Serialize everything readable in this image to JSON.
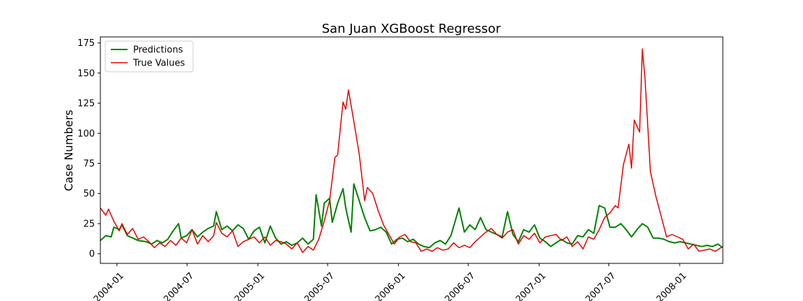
{
  "chart_data": {
    "type": "line",
    "title": "San Juan XGBoost Regressor",
    "xlabel": "",
    "ylabel": "Case Numbers",
    "x_axis_kind": "date",
    "xlim": [
      "2003-11-19",
      "2008-04-22"
    ],
    "ylim": [
      -8,
      180
    ],
    "x_ticks": [
      {
        "label": "2004-01",
        "date": "2004-01-01"
      },
      {
        "label": "2004-07",
        "date": "2004-07-01"
      },
      {
        "label": "2005-01",
        "date": "2005-01-01"
      },
      {
        "label": "2005-07",
        "date": "2005-07-01"
      },
      {
        "label": "2006-01",
        "date": "2006-01-01"
      },
      {
        "label": "2006-07",
        "date": "2006-07-01"
      },
      {
        "label": "2007-01",
        "date": "2007-01-01"
      },
      {
        "label": "2007-07",
        "date": "2007-07-01"
      },
      {
        "label": "2008-01",
        "date": "2008-01-01"
      }
    ],
    "y_ticks": [
      0,
      25,
      50,
      75,
      100,
      125,
      150,
      175
    ],
    "grid": false,
    "legend_position": "top-left",
    "series": [
      {
        "name": "Predictions",
        "color": "#008000",
        "points": [
          [
            "2003-11-19",
            11
          ],
          [
            "2003-12-03",
            15
          ],
          [
            "2003-12-17",
            14
          ],
          [
            "2003-12-24",
            22
          ],
          [
            "2004-01-07",
            20
          ],
          [
            "2004-01-14",
            24
          ],
          [
            "2004-01-28",
            15
          ],
          [
            "2004-02-11",
            13
          ],
          [
            "2004-02-25",
            11
          ],
          [
            "2004-03-17",
            10
          ],
          [
            "2004-03-31",
            8
          ],
          [
            "2004-04-14",
            11
          ],
          [
            "2004-04-28",
            9
          ],
          [
            "2004-05-12",
            12
          ],
          [
            "2004-05-26",
            19
          ],
          [
            "2004-06-09",
            25
          ],
          [
            "2004-06-16",
            13
          ],
          [
            "2004-06-30",
            15
          ],
          [
            "2004-07-14",
            20
          ],
          [
            "2004-07-28",
            14
          ],
          [
            "2004-08-11",
            18
          ],
          [
            "2004-08-25",
            21
          ],
          [
            "2004-09-08",
            23
          ],
          [
            "2004-09-15",
            35
          ],
          [
            "2004-09-29",
            20
          ],
          [
            "2004-10-13",
            23
          ],
          [
            "2004-10-27",
            19
          ],
          [
            "2004-11-10",
            24
          ],
          [
            "2004-11-24",
            21
          ],
          [
            "2004-12-08",
            12
          ],
          [
            "2004-12-22",
            19
          ],
          [
            "2005-01-05",
            22
          ],
          [
            "2005-01-19",
            9
          ],
          [
            "2005-02-02",
            23
          ],
          [
            "2005-02-16",
            13
          ],
          [
            "2005-03-02",
            8
          ],
          [
            "2005-03-16",
            10
          ],
          [
            "2005-03-30",
            7
          ],
          [
            "2005-04-13",
            9
          ],
          [
            "2005-04-27",
            13
          ],
          [
            "2005-05-11",
            8
          ],
          [
            "2005-05-25",
            12
          ],
          [
            "2005-06-01",
            49
          ],
          [
            "2005-06-15",
            23
          ],
          [
            "2005-06-22",
            42
          ],
          [
            "2005-07-06",
            46
          ],
          [
            "2005-07-13",
            26
          ],
          [
            "2005-07-27",
            42
          ],
          [
            "2005-08-10",
            54
          ],
          [
            "2005-08-17",
            38
          ],
          [
            "2005-08-31",
            18
          ],
          [
            "2005-09-07",
            58
          ],
          [
            "2005-09-21",
            44
          ],
          [
            "2005-10-05",
            30
          ],
          [
            "2005-10-19",
            19
          ],
          [
            "2005-11-02",
            20
          ],
          [
            "2005-11-16",
            22
          ],
          [
            "2005-11-30",
            18
          ],
          [
            "2005-12-14",
            8
          ],
          [
            "2005-12-28",
            12
          ],
          [
            "2006-01-11",
            13
          ],
          [
            "2006-01-25",
            10
          ],
          [
            "2006-02-08",
            12
          ],
          [
            "2006-02-22",
            8
          ],
          [
            "2006-03-08",
            6
          ],
          [
            "2006-03-22",
            5
          ],
          [
            "2006-04-05",
            9
          ],
          [
            "2006-04-19",
            11
          ],
          [
            "2006-05-03",
            8
          ],
          [
            "2006-05-17",
            15
          ],
          [
            "2006-06-07",
            38
          ],
          [
            "2006-06-21",
            18
          ],
          [
            "2006-07-05",
            24
          ],
          [
            "2006-07-19",
            20
          ],
          [
            "2006-08-02",
            30
          ],
          [
            "2006-08-16",
            20
          ],
          [
            "2006-08-30",
            18
          ],
          [
            "2006-09-13",
            16
          ],
          [
            "2006-09-27",
            14
          ],
          [
            "2006-10-11",
            35
          ],
          [
            "2006-10-25",
            16
          ],
          [
            "2006-11-08",
            10
          ],
          [
            "2006-11-22",
            20
          ],
          [
            "2006-12-06",
            18
          ],
          [
            "2006-12-20",
            24
          ],
          [
            "2007-01-03",
            13
          ],
          [
            "2007-01-17",
            10
          ],
          [
            "2007-01-31",
            6
          ],
          [
            "2007-02-14",
            9
          ],
          [
            "2007-02-28",
            12
          ],
          [
            "2007-03-14",
            9
          ],
          [
            "2007-03-28",
            8
          ],
          [
            "2007-04-11",
            15
          ],
          [
            "2007-04-25",
            14
          ],
          [
            "2007-05-09",
            20
          ],
          [
            "2007-05-23",
            17
          ],
          [
            "2007-06-06",
            40
          ],
          [
            "2007-06-20",
            38
          ],
          [
            "2007-07-04",
            22
          ],
          [
            "2007-07-18",
            22
          ],
          [
            "2007-08-01",
            25
          ],
          [
            "2007-08-15",
            20
          ],
          [
            "2007-08-29",
            14
          ],
          [
            "2007-09-12",
            20
          ],
          [
            "2007-09-26",
            25
          ],
          [
            "2007-10-10",
            22
          ],
          [
            "2007-10-24",
            13
          ],
          [
            "2007-11-07",
            13
          ],
          [
            "2007-11-21",
            12
          ],
          [
            "2007-12-05",
            10
          ],
          [
            "2007-12-19",
            9
          ],
          [
            "2008-01-02",
            10
          ],
          [
            "2008-01-16",
            9
          ],
          [
            "2008-01-30",
            8
          ],
          [
            "2008-02-13",
            7
          ],
          [
            "2008-02-27",
            6
          ],
          [
            "2008-03-12",
            7
          ],
          [
            "2008-03-26",
            6
          ],
          [
            "2008-04-09",
            8
          ],
          [
            "2008-04-22",
            5
          ]
        ]
      },
      {
        "name": "True Values",
        "color": "#e00000",
        "points": [
          [
            "2003-11-19",
            38
          ],
          [
            "2003-12-03",
            32
          ],
          [
            "2003-12-10",
            37
          ],
          [
            "2003-12-24",
            27
          ],
          [
            "2004-01-07",
            19
          ],
          [
            "2004-01-14",
            25
          ],
          [
            "2004-01-28",
            16
          ],
          [
            "2004-02-11",
            21
          ],
          [
            "2004-02-25",
            12
          ],
          [
            "2004-03-10",
            14
          ],
          [
            "2004-03-24",
            10
          ],
          [
            "2004-04-07",
            5
          ],
          [
            "2004-04-21",
            9
          ],
          [
            "2004-05-05",
            6
          ],
          [
            "2004-05-19",
            11
          ],
          [
            "2004-06-02",
            7
          ],
          [
            "2004-06-16",
            13
          ],
          [
            "2004-06-30",
            9
          ],
          [
            "2004-07-14",
            20
          ],
          [
            "2004-07-28",
            8
          ],
          [
            "2004-08-11",
            15
          ],
          [
            "2004-08-25",
            10
          ],
          [
            "2004-09-08",
            15
          ],
          [
            "2004-09-15",
            26
          ],
          [
            "2004-09-29",
            17
          ],
          [
            "2004-10-13",
            14
          ],
          [
            "2004-10-27",
            19
          ],
          [
            "2004-11-10",
            6
          ],
          [
            "2004-11-24",
            10
          ],
          [
            "2004-12-08",
            12
          ],
          [
            "2004-12-22",
            14
          ],
          [
            "2005-01-05",
            9
          ],
          [
            "2005-01-19",
            14
          ],
          [
            "2005-02-02",
            7
          ],
          [
            "2005-02-16",
            11
          ],
          [
            "2005-03-02",
            10
          ],
          [
            "2005-03-16",
            8
          ],
          [
            "2005-03-30",
            4
          ],
          [
            "2005-04-13",
            9
          ],
          [
            "2005-04-27",
            1
          ],
          [
            "2005-05-11",
            6
          ],
          [
            "2005-05-25",
            3
          ],
          [
            "2005-06-08",
            12
          ],
          [
            "2005-06-22",
            27
          ],
          [
            "2005-07-06",
            44
          ],
          [
            "2005-07-20",
            80
          ],
          [
            "2005-07-27",
            82
          ],
          [
            "2005-08-10",
            126
          ],
          [
            "2005-08-17",
            120
          ],
          [
            "2005-08-24",
            136
          ],
          [
            "2005-09-07",
            110
          ],
          [
            "2005-09-21",
            83
          ],
          [
            "2005-10-05",
            44
          ],
          [
            "2005-10-12",
            55
          ],
          [
            "2005-10-26",
            50
          ],
          [
            "2005-11-09",
            36
          ],
          [
            "2005-11-23",
            24
          ],
          [
            "2005-12-07",
            16
          ],
          [
            "2005-12-21",
            8
          ],
          [
            "2006-01-04",
            14
          ],
          [
            "2006-01-18",
            16
          ],
          [
            "2006-02-01",
            10
          ],
          [
            "2006-02-15",
            9
          ],
          [
            "2006-03-01",
            2
          ],
          [
            "2006-03-15",
            4
          ],
          [
            "2006-03-29",
            2
          ],
          [
            "2006-04-12",
            5
          ],
          [
            "2006-04-26",
            3
          ],
          [
            "2006-05-10",
            4
          ],
          [
            "2006-05-24",
            9
          ],
          [
            "2006-06-07",
            5
          ],
          [
            "2006-06-21",
            7
          ],
          [
            "2006-07-05",
            5
          ],
          [
            "2006-07-19",
            10
          ],
          [
            "2006-08-02",
            14
          ],
          [
            "2006-08-16",
            18
          ],
          [
            "2006-08-30",
            21
          ],
          [
            "2006-09-13",
            16
          ],
          [
            "2006-09-27",
            13
          ],
          [
            "2006-10-11",
            18
          ],
          [
            "2006-10-25",
            20
          ],
          [
            "2006-11-08",
            8
          ],
          [
            "2006-11-22",
            15
          ],
          [
            "2006-12-06",
            12
          ],
          [
            "2006-12-20",
            17
          ],
          [
            "2007-01-03",
            9
          ],
          [
            "2007-01-17",
            14
          ],
          [
            "2007-01-31",
            15
          ],
          [
            "2007-02-14",
            16
          ],
          [
            "2007-02-28",
            11
          ],
          [
            "2007-03-14",
            14
          ],
          [
            "2007-03-28",
            6
          ],
          [
            "2007-04-11",
            10
          ],
          [
            "2007-04-25",
            4
          ],
          [
            "2007-05-09",
            14
          ],
          [
            "2007-05-23",
            12
          ],
          [
            "2007-06-06",
            20
          ],
          [
            "2007-06-20",
            30
          ],
          [
            "2007-07-04",
            34
          ],
          [
            "2007-07-18",
            40
          ],
          [
            "2007-07-25",
            38
          ],
          [
            "2007-08-08",
            74
          ],
          [
            "2007-08-22",
            91
          ],
          [
            "2007-08-29",
            71
          ],
          [
            "2007-09-05",
            111
          ],
          [
            "2007-09-19",
            101
          ],
          [
            "2007-09-26",
            170
          ],
          [
            "2007-10-03",
            145
          ],
          [
            "2007-10-17",
            68
          ],
          [
            "2007-10-31",
            48
          ],
          [
            "2007-11-14",
            31
          ],
          [
            "2007-11-28",
            14
          ],
          [
            "2007-12-12",
            16
          ],
          [
            "2007-12-26",
            14
          ],
          [
            "2008-01-09",
            12
          ],
          [
            "2008-01-23",
            4
          ],
          [
            "2008-02-06",
            8
          ],
          [
            "2008-02-20",
            2
          ],
          [
            "2008-03-05",
            3
          ],
          [
            "2008-03-19",
            4
          ],
          [
            "2008-04-02",
            2
          ],
          [
            "2008-04-22",
            6
          ]
        ]
      }
    ]
  }
}
